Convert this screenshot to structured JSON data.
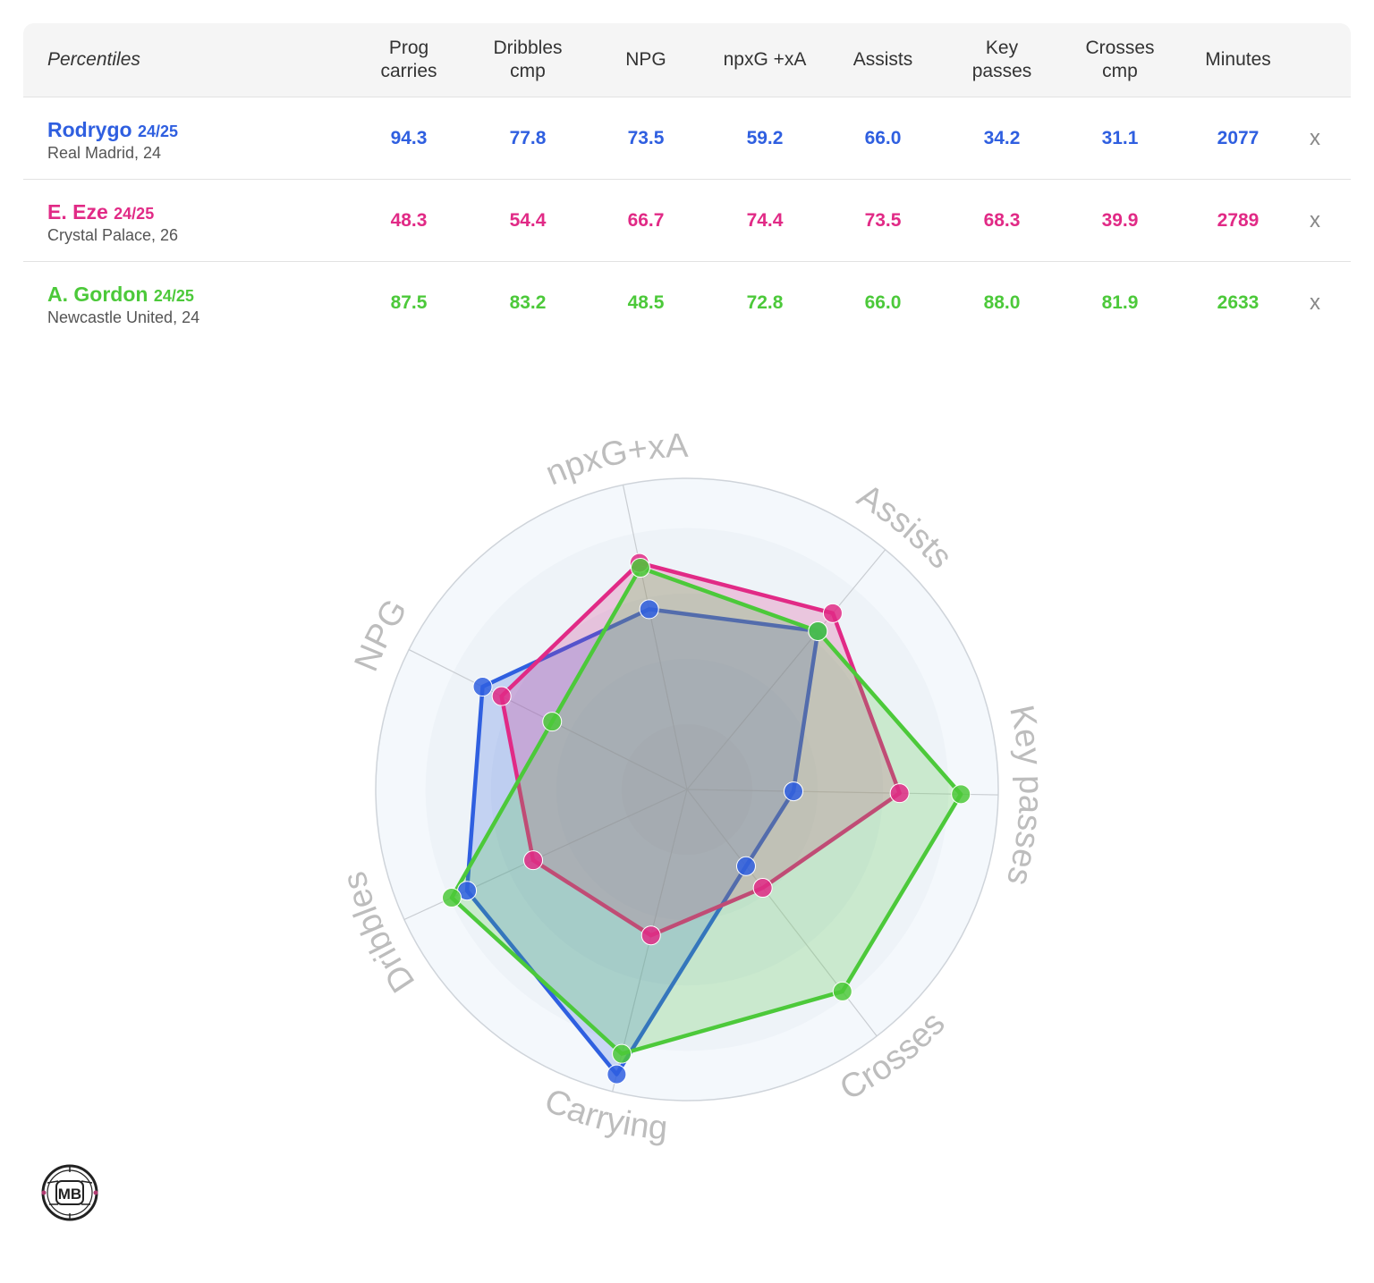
{
  "table": {
    "header_label": "Percentiles",
    "columns": [
      {
        "line1": "Prog",
        "line2": "carries"
      },
      {
        "line1": "Dribbles",
        "line2": "cmp"
      },
      {
        "line1": "NPG",
        "line2": ""
      },
      {
        "line1": "npxG +xA",
        "line2": ""
      },
      {
        "line1": "Assists",
        "line2": ""
      },
      {
        "line1": "Key",
        "line2": "passes"
      },
      {
        "line1": "Crosses",
        "line2": "cmp"
      },
      {
        "line1": "Minutes",
        "line2": ""
      }
    ],
    "remove_label": "x"
  },
  "players": [
    {
      "name": "Rodrygo",
      "season": "24/25",
      "info": "Real Madrid, 24",
      "color": "#2f5fe0",
      "values": [
        "94.3",
        "77.8",
        "73.5",
        "59.2",
        "66.0",
        "34.2",
        "31.1",
        "2077"
      ]
    },
    {
      "name": "E. Eze",
      "season": "24/25",
      "info": "Crystal Palace, 26",
      "color": "#e12a86",
      "values": [
        "48.3",
        "54.4",
        "66.7",
        "74.4",
        "73.5",
        "68.3",
        "39.9",
        "2789"
      ]
    },
    {
      "name": "A. Gordon",
      "season": "24/25",
      "info": "Newcastle United, 24",
      "color": "#4cc93a",
      "values": [
        "87.5",
        "83.2",
        "48.5",
        "72.8",
        "66.0",
        "88.0",
        "81.9",
        "2633"
      ]
    }
  ],
  "chart_data": {
    "type": "radar",
    "axes": [
      "Key passes",
      "Crosses",
      "Carrying",
      "Dribbles",
      "NPG",
      "npxG+xA",
      "Assists"
    ],
    "range": [
      0,
      100
    ],
    "series": [
      {
        "name": "Rodrygo",
        "color": "#2f5fe0",
        "values": [
          34.2,
          31.1,
          94.3,
          77.8,
          73.5,
          59.2,
          66.0
        ]
      },
      {
        "name": "E. Eze",
        "color": "#e12a86",
        "values": [
          68.3,
          39.9,
          48.3,
          54.4,
          66.7,
          74.4,
          73.5
        ]
      },
      {
        "name": "A. Gordon",
        "color": "#4cc93a",
        "values": [
          88.0,
          81.9,
          87.5,
          83.2,
          48.5,
          72.8,
          66.0
        ]
      }
    ]
  },
  "logo": {
    "text": "MB"
  }
}
